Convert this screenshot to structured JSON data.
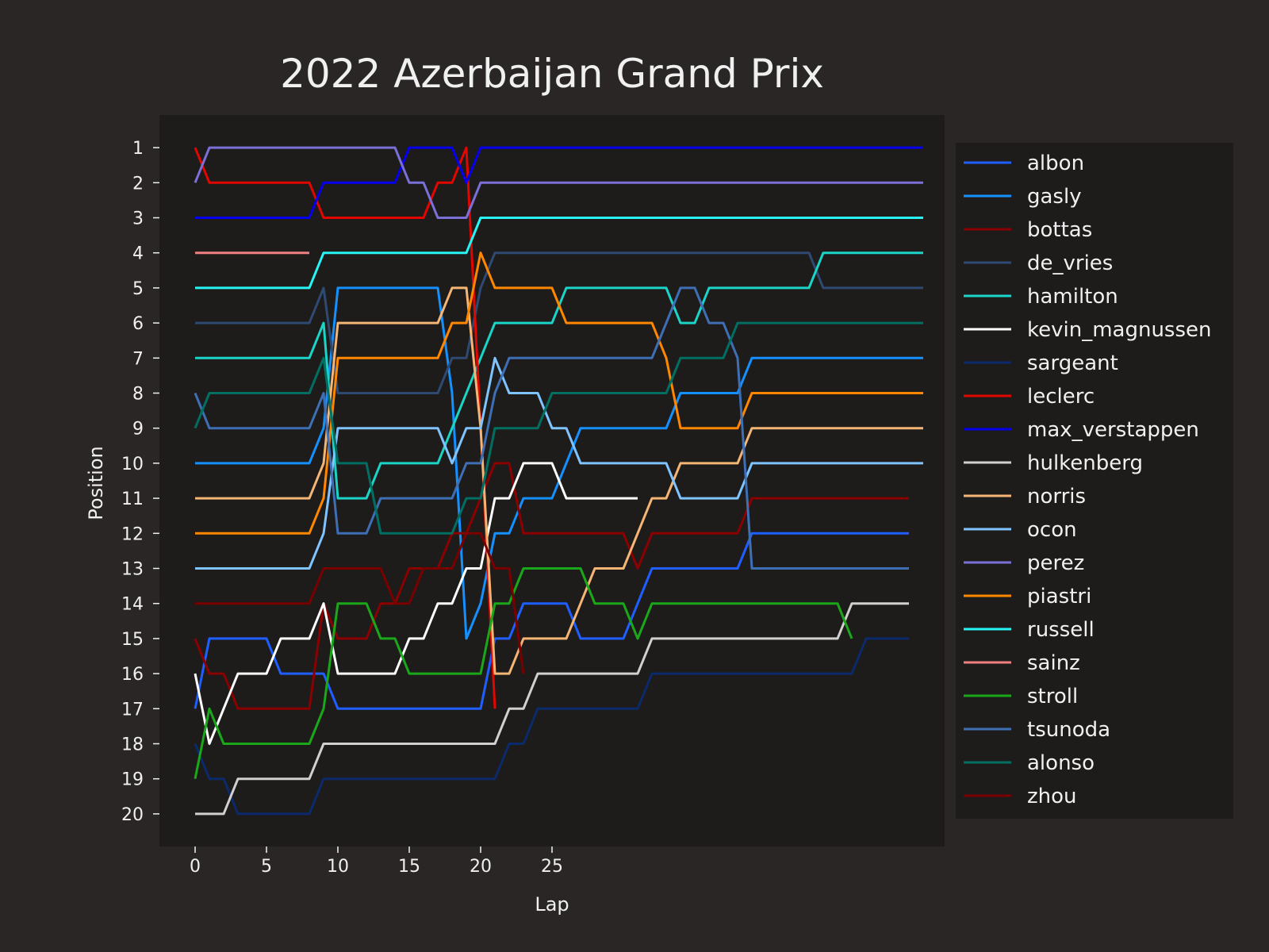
{
  "chart_data": {
    "type": "line",
    "title": "2022 Azerbaijan Grand Prix",
    "xlabel": "Lap",
    "ylabel": "Position",
    "xlim": [
      -2.5,
      52.5
    ],
    "ylim": [
      20.93,
      0.07
    ],
    "x_ticks": [
      0,
      5,
      10,
      15,
      20,
      25
    ],
    "y_ticks": [
      1,
      2,
      3,
      4,
      5,
      6,
      7,
      8,
      9,
      10,
      11,
      12,
      13,
      14,
      15,
      16,
      17,
      18,
      19,
      20
    ],
    "y_inverted": true,
    "grid": false,
    "legend_position": "outside-right",
    "colors": {
      "background": "#292625",
      "plot_background": "#1e1c1b",
      "text": "#f0f0f0"
    },
    "series": [
      {
        "name": "albon",
        "color": "#1f5fff",
        "points": [
          [
            0,
            17
          ],
          [
            1,
            15
          ],
          [
            5,
            15
          ],
          [
            6,
            16
          ],
          [
            9,
            16
          ],
          [
            10,
            17
          ],
          [
            20,
            17
          ],
          [
            21,
            15
          ],
          [
            22,
            15
          ],
          [
            23,
            14
          ],
          [
            26,
            14
          ],
          [
            27,
            15
          ],
          [
            30,
            15
          ],
          [
            32,
            13
          ],
          [
            38,
            13
          ],
          [
            39,
            12
          ],
          [
            50,
            12
          ]
        ]
      },
      {
        "name": "gasly",
        "color": "#1590ff",
        "points": [
          [
            0,
            10
          ],
          [
            8,
            10
          ],
          [
            9,
            9
          ],
          [
            10,
            5
          ],
          [
            17,
            5
          ],
          [
            18,
            8
          ],
          [
            19,
            15
          ],
          [
            20,
            14
          ],
          [
            21,
            12
          ],
          [
            22,
            12
          ],
          [
            23,
            11
          ],
          [
            25,
            11
          ],
          [
            27,
            9
          ],
          [
            33,
            9
          ],
          [
            34,
            8
          ],
          [
            38,
            8
          ],
          [
            39,
            7
          ],
          [
            51,
            7
          ]
        ]
      },
      {
        "name": "bottas",
        "color": "#8b0000",
        "points": [
          [
            0,
            15
          ],
          [
            1,
            16
          ],
          [
            2,
            16
          ],
          [
            3,
            17
          ],
          [
            8,
            17
          ],
          [
            9,
            14
          ],
          [
            10,
            15
          ],
          [
            12,
            15
          ],
          [
            13,
            14
          ],
          [
            14,
            14
          ],
          [
            15,
            13
          ],
          [
            17,
            13
          ],
          [
            18,
            12
          ],
          [
            19,
            12
          ],
          [
            20,
            11
          ],
          [
            21,
            10
          ],
          [
            22,
            10
          ],
          [
            23,
            12
          ],
          [
            30,
            12
          ],
          [
            31,
            13
          ],
          [
            32,
            12
          ],
          [
            38,
            12
          ],
          [
            39,
            11
          ],
          [
            50,
            11
          ]
        ]
      },
      {
        "name": "de_vries",
        "color": "#2e4a72",
        "points": [
          [
            0,
            6
          ],
          [
            8,
            6
          ],
          [
            9,
            5
          ],
          [
            10,
            8
          ],
          [
            17,
            8
          ],
          [
            18,
            7
          ],
          [
            19,
            7
          ],
          [
            20,
            5
          ],
          [
            21,
            4
          ],
          [
            43,
            4
          ],
          [
            44,
            5
          ],
          [
            51,
            5
          ]
        ]
      },
      {
        "name": "hamilton",
        "color": "#1ad4c8",
        "points": [
          [
            0,
            7
          ],
          [
            8,
            7
          ],
          [
            9,
            6
          ],
          [
            10,
            11
          ],
          [
            12,
            11
          ],
          [
            13,
            10
          ],
          [
            17,
            10
          ],
          [
            18,
            9
          ],
          [
            20,
            7
          ],
          [
            21,
            6
          ],
          [
            25,
            6
          ],
          [
            26,
            5
          ],
          [
            33,
            5
          ],
          [
            34,
            6
          ],
          [
            35,
            6
          ],
          [
            36,
            5
          ],
          [
            43,
            5
          ],
          [
            44,
            4
          ],
          [
            51,
            4
          ]
        ]
      },
      {
        "name": "kevin_magnussen",
        "color": "#ffffff",
        "points": [
          [
            0,
            16
          ],
          [
            1,
            18
          ],
          [
            3,
            16
          ],
          [
            5,
            16
          ],
          [
            6,
            15
          ],
          [
            8,
            15
          ],
          [
            9,
            14
          ],
          [
            10,
            16
          ],
          [
            14,
            16
          ],
          [
            15,
            15
          ],
          [
            16,
            15
          ],
          [
            17,
            14
          ],
          [
            18,
            14
          ],
          [
            19,
            13
          ],
          [
            20,
            13
          ],
          [
            21,
            11
          ],
          [
            22,
            11
          ],
          [
            23,
            10
          ],
          [
            25,
            10
          ],
          [
            26,
            11
          ],
          [
            31,
            11
          ]
        ]
      },
      {
        "name": "sargeant",
        "color": "#0a2a6b",
        "points": [
          [
            0,
            18
          ],
          [
            1,
            19
          ],
          [
            2,
            19
          ],
          [
            3,
            20
          ],
          [
            8,
            20
          ],
          [
            9,
            19
          ],
          [
            21,
            19
          ],
          [
            22,
            18
          ],
          [
            23,
            18
          ],
          [
            24,
            17
          ],
          [
            31,
            17
          ],
          [
            32,
            16
          ],
          [
            46,
            16
          ],
          [
            47,
            15
          ],
          [
            50,
            15
          ]
        ]
      },
      {
        "name": "leclerc",
        "color": "#e10600",
        "points": [
          [
            0,
            1
          ],
          [
            1,
            2
          ],
          [
            8,
            2
          ],
          [
            9,
            3
          ],
          [
            16,
            3
          ],
          [
            17,
            2
          ],
          [
            18,
            2
          ],
          [
            19,
            1
          ],
          [
            20,
            9
          ],
          [
            21,
            17
          ]
        ]
      },
      {
        "name": "max_verstappen",
        "color": "#0600ef",
        "points": [
          [
            0,
            3
          ],
          [
            8,
            3
          ],
          [
            9,
            2
          ],
          [
            14,
            2
          ],
          [
            15,
            1
          ],
          [
            18,
            1
          ],
          [
            19,
            2
          ],
          [
            20,
            1
          ],
          [
            51,
            1
          ]
        ]
      },
      {
        "name": "hulkenberg",
        "color": "#d0d0d0",
        "points": [
          [
            0,
            20
          ],
          [
            2,
            20
          ],
          [
            3,
            19
          ],
          [
            8,
            19
          ],
          [
            9,
            18
          ],
          [
            21,
            18
          ],
          [
            22,
            17
          ],
          [
            23,
            17
          ],
          [
            24,
            16
          ],
          [
            31,
            16
          ],
          [
            32,
            15
          ],
          [
            45,
            15
          ],
          [
            46,
            14
          ],
          [
            50,
            14
          ]
        ]
      },
      {
        "name": "norris",
        "color": "#f5b574",
        "points": [
          [
            0,
            11
          ],
          [
            8,
            11
          ],
          [
            9,
            10
          ],
          [
            10,
            6
          ],
          [
            17,
            6
          ],
          [
            18,
            5
          ],
          [
            19,
            5
          ],
          [
            20,
            9
          ],
          [
            21,
            16
          ],
          [
            22,
            16
          ],
          [
            23,
            15
          ],
          [
            26,
            15
          ],
          [
            28,
            13
          ],
          [
            30,
            13
          ],
          [
            32,
            11
          ],
          [
            33,
            11
          ],
          [
            34,
            10
          ],
          [
            38,
            10
          ],
          [
            39,
            9
          ],
          [
            51,
            9
          ]
        ]
      },
      {
        "name": "ocon",
        "color": "#7fc4ff",
        "points": [
          [
            0,
            13
          ],
          [
            8,
            13
          ],
          [
            9,
            12
          ],
          [
            10,
            9
          ],
          [
            17,
            9
          ],
          [
            18,
            10
          ],
          [
            19,
            9
          ],
          [
            20,
            9
          ],
          [
            21,
            7
          ],
          [
            22,
            8
          ],
          [
            24,
            8
          ],
          [
            25,
            9
          ],
          [
            26,
            9
          ],
          [
            27,
            10
          ],
          [
            33,
            10
          ],
          [
            34,
            11
          ],
          [
            38,
            11
          ],
          [
            39,
            10
          ],
          [
            51,
            10
          ]
        ]
      },
      {
        "name": "perez",
        "color": "#7b6fd8",
        "points": [
          [
            0,
            2
          ],
          [
            1,
            1
          ],
          [
            14,
            1
          ],
          [
            15,
            2
          ],
          [
            16,
            2
          ],
          [
            17,
            3
          ],
          [
            19,
            3
          ],
          [
            20,
            2
          ],
          [
            51,
            2
          ]
        ]
      },
      {
        "name": "piastri",
        "color": "#ff8700",
        "points": [
          [
            0,
            12
          ],
          [
            8,
            12
          ],
          [
            9,
            11
          ],
          [
            10,
            7
          ],
          [
            17,
            7
          ],
          [
            18,
            6
          ],
          [
            19,
            6
          ],
          [
            20,
            4
          ],
          [
            21,
            5
          ],
          [
            25,
            5
          ],
          [
            26,
            6
          ],
          [
            32,
            6
          ],
          [
            33,
            7
          ],
          [
            34,
            9
          ],
          [
            38,
            9
          ],
          [
            39,
            8
          ],
          [
            51,
            8
          ]
        ]
      },
      {
        "name": "russell",
        "color": "#27f4f4",
        "points": [
          [
            0,
            5
          ],
          [
            8,
            5
          ],
          [
            9,
            4
          ],
          [
            19,
            4
          ],
          [
            20,
            3
          ],
          [
            51,
            3
          ]
        ]
      },
      {
        "name": "sainz",
        "color": "#f08080",
        "points": [
          [
            0,
            4
          ],
          [
            8,
            4
          ]
        ]
      },
      {
        "name": "stroll",
        "color": "#1aa81a",
        "points": [
          [
            0,
            19
          ],
          [
            1,
            17
          ],
          [
            2,
            18
          ],
          [
            8,
            18
          ],
          [
            9,
            17
          ],
          [
            10,
            14
          ],
          [
            12,
            14
          ],
          [
            13,
            15
          ],
          [
            14,
            15
          ],
          [
            15,
            16
          ],
          [
            20,
            16
          ],
          [
            21,
            14
          ],
          [
            22,
            14
          ],
          [
            23,
            13
          ],
          [
            27,
            13
          ],
          [
            28,
            14
          ],
          [
            30,
            14
          ],
          [
            31,
            15
          ],
          [
            32,
            14
          ],
          [
            45,
            14
          ],
          [
            46,
            15
          ]
        ]
      },
      {
        "name": "tsunoda",
        "color": "#3e6fb5",
        "points": [
          [
            0,
            8
          ],
          [
            1,
            9
          ],
          [
            8,
            9
          ],
          [
            9,
            8
          ],
          [
            10,
            12
          ],
          [
            12,
            12
          ],
          [
            13,
            11
          ],
          [
            18,
            11
          ],
          [
            19,
            10
          ],
          [
            20,
            10
          ],
          [
            21,
            8
          ],
          [
            22,
            7
          ],
          [
            32,
            7
          ],
          [
            34,
            5
          ],
          [
            35,
            5
          ],
          [
            36,
            6
          ],
          [
            37,
            6
          ],
          [
            38,
            7
          ],
          [
            39,
            13
          ],
          [
            50,
            13
          ]
        ]
      },
      {
        "name": "alonso",
        "color": "#006f62",
        "points": [
          [
            0,
            9
          ],
          [
            1,
            8
          ],
          [
            8,
            8
          ],
          [
            9,
            7
          ],
          [
            10,
            10
          ],
          [
            12,
            10
          ],
          [
            13,
            12
          ],
          [
            18,
            12
          ],
          [
            19,
            11
          ],
          [
            20,
            11
          ],
          [
            21,
            9
          ],
          [
            24,
            9
          ],
          [
            25,
            8
          ],
          [
            33,
            8
          ],
          [
            34,
            7
          ],
          [
            37,
            7
          ],
          [
            38,
            6
          ],
          [
            51,
            6
          ]
        ]
      },
      {
        "name": "zhou",
        "color": "#7a0000",
        "points": [
          [
            0,
            14
          ],
          [
            8,
            14
          ],
          [
            9,
            13
          ],
          [
            13,
            13
          ],
          [
            14,
            14
          ],
          [
            15,
            14
          ],
          [
            16,
            13
          ],
          [
            18,
            13
          ],
          [
            19,
            12
          ],
          [
            20,
            12
          ],
          [
            21,
            13
          ],
          [
            22,
            13
          ],
          [
            23,
            16
          ]
        ]
      }
    ]
  }
}
